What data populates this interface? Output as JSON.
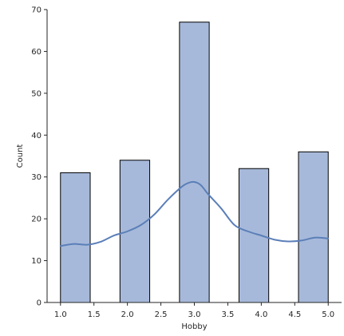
{
  "chart_data": {
    "type": "bar",
    "xlabel": "Hobby",
    "ylabel": "Count",
    "bars": [
      {
        "x_start": 1.0,
        "x_end": 1.444,
        "value": 31
      },
      {
        "x_start": 1.889,
        "x_end": 2.333,
        "value": 34
      },
      {
        "x_start": 2.778,
        "x_end": 3.222,
        "value": 67
      },
      {
        "x_start": 3.667,
        "x_end": 4.111,
        "value": 32
      },
      {
        "x_start": 4.556,
        "x_end": 5.0,
        "value": 36
      }
    ],
    "kde_line": {
      "x": [
        1.0,
        1.2,
        1.4,
        1.6,
        1.8,
        2.0,
        2.2,
        2.4,
        2.6,
        2.8,
        2.9,
        3.0,
        3.1,
        3.2,
        3.4,
        3.6,
        3.8,
        4.0,
        4.2,
        4.4,
        4.6,
        4.8,
        5.0
      ],
      "y": [
        13.5,
        14.0,
        13.8,
        14.5,
        16.0,
        17.0,
        18.5,
        21.0,
        24.5,
        27.5,
        28.5,
        28.8,
        28.0,
        26.0,
        22.5,
        18.5,
        17.0,
        16.0,
        15.0,
        14.6,
        14.8,
        15.5,
        15.3
      ]
    },
    "xlim": [
      0.8,
      5.2
    ],
    "ylim": [
      0,
      70
    ],
    "xticks": [
      1.0,
      1.5,
      2.0,
      2.5,
      3.0,
      3.5,
      4.0,
      4.5,
      5.0
    ],
    "xtick_labels": [
      "1.0",
      "1.5",
      "2.0",
      "2.5",
      "3.0",
      "3.5",
      "4.0",
      "4.5",
      "5.0"
    ],
    "yticks": [
      0,
      10,
      20,
      30,
      40,
      50,
      60,
      70
    ],
    "ytick_labels": [
      "0",
      "10",
      "20",
      "30",
      "40",
      "50",
      "60",
      "70"
    ],
    "grid": false,
    "colors": {
      "bar_fill": "#a7b9da",
      "bar_edge": "#000000",
      "line": "#5b7fb8",
      "axis": "#262626"
    }
  }
}
